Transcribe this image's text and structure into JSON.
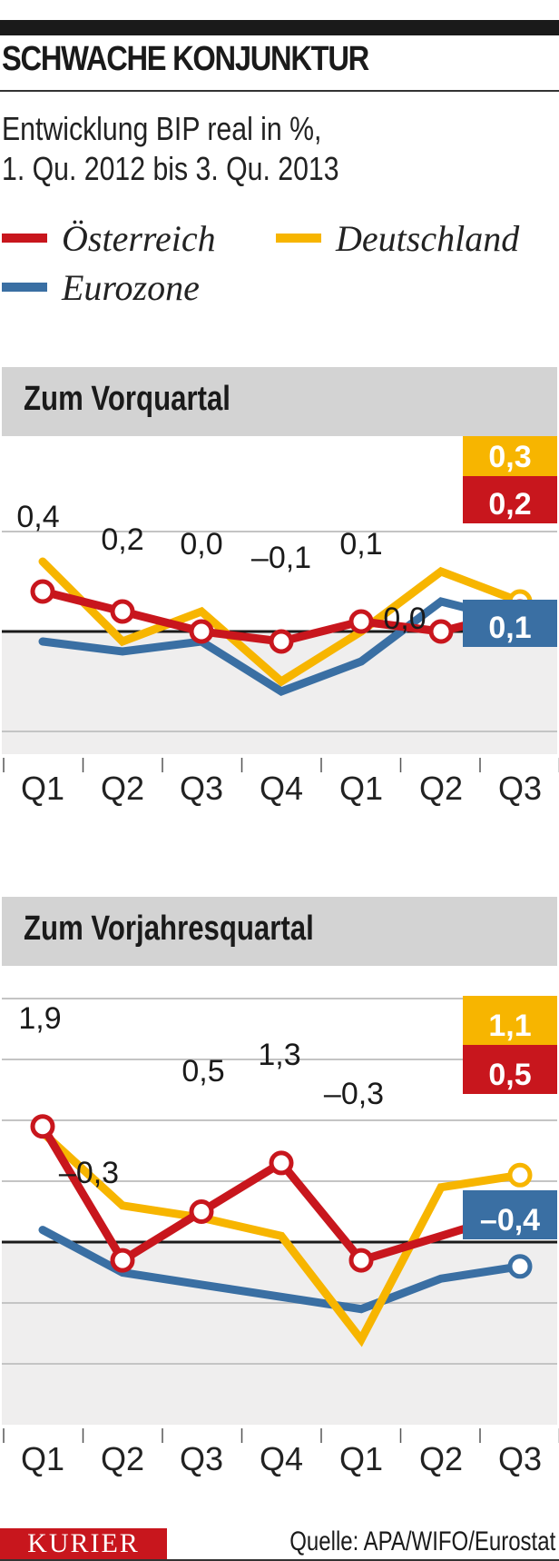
{
  "header": {
    "title": "SCHWACHE KONJUNKTUR",
    "subtitle_line1": "Entwicklung BIP real in %,",
    "subtitle_line2": "1. Qu. 2012 bis 3. Qu. 2013"
  },
  "legend": [
    {
      "label": "Österreich",
      "color": "#c8161d"
    },
    {
      "label": "Deutschland",
      "color": "#f7b500"
    },
    {
      "label": "Eurozone",
      "color": "#3a6fa3"
    }
  ],
  "sections": {
    "vorquartal": {
      "title": "Zum Vorquartal"
    },
    "vorjahresquartal": {
      "title": "Zum Vorjahresquartal"
    }
  },
  "footer": {
    "logo": "KURIER",
    "source": "Quelle: APA/WIFO/Eurostat"
  },
  "colors": {
    "oesterreich": "#c8161d",
    "deutschland": "#f7b500",
    "eurozone": "#3a6fa3",
    "header_bg": "#d3d3d3",
    "negative_area": "#efeeee",
    "gridline": "#c4c4c4"
  },
  "chart_data": [
    {
      "type": "line",
      "title": "Zum Vorquartal",
      "xlabel": "",
      "ylabel": "BIP real in %",
      "categories": [
        "Q1",
        "Q2",
        "Q3",
        "Q4",
        "Q1",
        "Q2",
        "Q3"
      ],
      "period": "1. Qu. 2012 bis 3. Qu. 2013",
      "ylim": [
        -1.2,
        1.2
      ],
      "gridlines": [
        1,
        0,
        -1
      ],
      "grid": true,
      "legend_position": "top",
      "series": [
        {
          "name": "Österreich",
          "values": [
            0.4,
            0.2,
            0.0,
            -0.1,
            0.1,
            0.0,
            0.2
          ],
          "labels": [
            "0,4",
            "0,2",
            "0,0",
            "–0,1",
            "0,1",
            "0,0",
            "0,2"
          ]
        },
        {
          "name": "Deutschland",
          "values": [
            0.7,
            -0.1,
            0.2,
            -0.5,
            0.0,
            0.6,
            0.3
          ],
          "end_label": "0,3"
        },
        {
          "name": "Eurozone",
          "values": [
            -0.1,
            -0.2,
            -0.1,
            -0.6,
            -0.3,
            0.3,
            0.1
          ],
          "end_label": "0,1"
        }
      ],
      "end_labels": [
        {
          "series": "Deutschland",
          "text": "0,3"
        },
        {
          "series": "Österreich",
          "text": "0,2"
        },
        {
          "series": "Eurozone",
          "text": "0,1"
        }
      ]
    },
    {
      "type": "line",
      "title": "Zum Vorjahresquartal",
      "xlabel": "",
      "ylabel": "BIP real in %",
      "categories": [
        "Q1",
        "Q2",
        "Q3",
        "Q4",
        "Q1",
        "Q2",
        "Q3"
      ],
      "period": "1. Qu. 2012 bis 3. Qu. 2013",
      "ylim": [
        -2.4,
        4.2
      ],
      "gridlines": [
        4,
        3,
        2,
        1,
        0,
        -1,
        -2
      ],
      "grid": true,
      "legend_position": "top",
      "series": [
        {
          "name": "Österreich",
          "values": [
            1.9,
            -0.3,
            0.5,
            1.3,
            -0.3,
            0.1,
            0.5
          ],
          "labels": [
            "1,9",
            "–0,3",
            "0,5",
            "1,3",
            "–0,3",
            "",
            "0,5"
          ]
        },
        {
          "name": "Deutschland",
          "values": [
            1.8,
            0.6,
            0.4,
            0.1,
            -1.6,
            0.9,
            1.1
          ],
          "end_label": "1,1"
        },
        {
          "name": "Eurozone",
          "values": [
            0.2,
            -0.5,
            -0.7,
            -0.9,
            -1.1,
            -0.6,
            -0.4
          ],
          "end_label": "–0,4"
        }
      ],
      "end_labels": [
        {
          "series": "Deutschland",
          "text": "1,1"
        },
        {
          "series": "Österreich",
          "text": "0,5"
        },
        {
          "series": "Eurozone",
          "text": "–0,4"
        }
      ]
    }
  ]
}
